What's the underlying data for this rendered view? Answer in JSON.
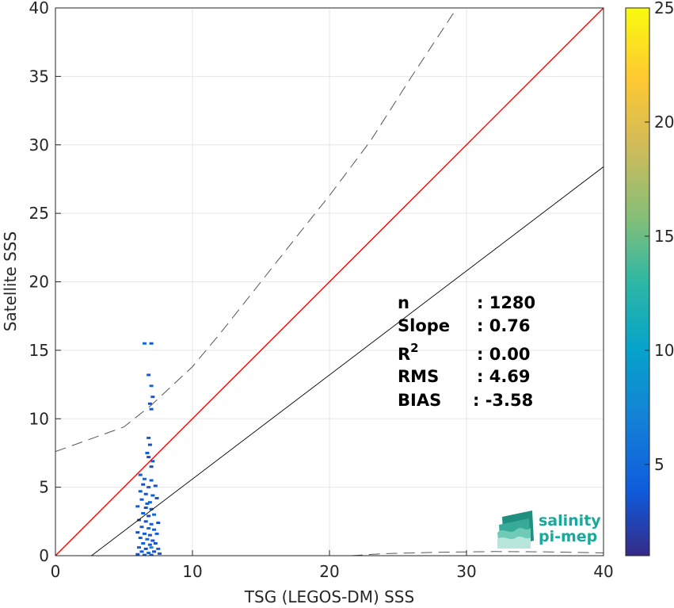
{
  "chart_data": {
    "type": "scatter",
    "xlabel": "TSG (LEGOS-DM) SSS",
    "ylabel": "Satellite SSS",
    "xlim": [
      0,
      40
    ],
    "ylim": [
      0,
      40
    ],
    "xticks": [
      "0",
      "10",
      "20",
      "30",
      "40"
    ],
    "yticks": [
      "0",
      "5",
      "10",
      "15",
      "20",
      "25",
      "30",
      "35",
      "40"
    ],
    "grid": true,
    "colorbar": {
      "range": [
        1,
        25
      ],
      "ticks": [
        "5",
        "10",
        "15",
        "20",
        "25"
      ],
      "colormap": "parula"
    },
    "identity_line": {
      "color": "#ff0000",
      "from": [
        0,
        0
      ],
      "to": [
        40,
        40
      ]
    },
    "fit_line": {
      "slope": 0.76,
      "intercept": -2.0,
      "color": "#000000"
    },
    "envelope_upper": [
      [
        0,
        7.6
      ],
      [
        5,
        9.4
      ],
      [
        7,
        11.0
      ],
      [
        10,
        13.8
      ],
      [
        12,
        16.2
      ],
      [
        15,
        20.0
      ],
      [
        18,
        23.8
      ],
      [
        20,
        26.3
      ],
      [
        23,
        30.3
      ],
      [
        26,
        35.0
      ],
      [
        29.3,
        40
      ]
    ],
    "envelope_lower": [
      [
        21.6,
        0
      ],
      [
        24,
        0.15
      ],
      [
        28,
        0.25
      ],
      [
        32,
        0.3
      ],
      [
        36,
        0.28
      ],
      [
        40,
        0.2
      ]
    ],
    "points": [
      [
        6.5,
        15.5,
        5
      ],
      [
        7.0,
        15.5,
        4
      ],
      [
        6.8,
        13.2,
        4
      ],
      [
        7.0,
        12.4,
        5
      ],
      [
        7.1,
        11.6,
        4
      ],
      [
        6.9,
        11.1,
        3
      ],
      [
        7.0,
        10.7,
        4
      ],
      [
        6.8,
        8.6,
        4
      ],
      [
        6.9,
        8.1,
        3
      ],
      [
        6.7,
        7.5,
        4
      ],
      [
        6.8,
        7.2,
        3
      ],
      [
        7.1,
        6.9,
        4
      ],
      [
        7.0,
        6.5,
        3
      ],
      [
        6.2,
        5.9,
        4
      ],
      [
        6.5,
        5.6,
        5
      ],
      [
        7.0,
        5.5,
        4
      ],
      [
        6.4,
        5.2,
        3
      ],
      [
        6.8,
        5.0,
        4
      ],
      [
        7.3,
        5.1,
        3
      ],
      [
        6.2,
        4.7,
        4
      ],
      [
        6.6,
        4.5,
        3
      ],
      [
        7.1,
        4.4,
        4
      ],
      [
        6.3,
        4.1,
        4
      ],
      [
        6.9,
        3.9,
        5
      ],
      [
        7.4,
        4.2,
        3
      ],
      [
        6.0,
        3.6,
        4
      ],
      [
        6.6,
        3.5,
        3
      ],
      [
        7.0,
        3.4,
        4
      ],
      [
        6.4,
        3.1,
        4
      ],
      [
        6.8,
        2.9,
        3
      ],
      [
        7.2,
        3.0,
        5
      ],
      [
        6.1,
        2.6,
        4
      ],
      [
        6.6,
        2.5,
        3
      ],
      [
        7.0,
        2.3,
        4
      ],
      [
        7.5,
        2.4,
        3
      ],
      [
        6.3,
        2.1,
        4
      ],
      [
        6.8,
        2.0,
        5
      ],
      [
        7.2,
        1.9,
        4
      ],
      [
        6.0,
        1.7,
        3
      ],
      [
        6.5,
        1.6,
        4
      ],
      [
        6.9,
        1.5,
        3
      ],
      [
        7.4,
        1.6,
        4
      ],
      [
        6.2,
        1.3,
        4
      ],
      [
        6.7,
        1.2,
        5
      ],
      [
        7.1,
        1.1,
        3
      ],
      [
        6.4,
        0.9,
        4
      ],
      [
        6.9,
        0.8,
        4
      ],
      [
        7.3,
        0.9,
        3
      ],
      [
        6.1,
        0.6,
        4
      ],
      [
        6.6,
        0.5,
        3
      ],
      [
        7.0,
        0.6,
        8
      ],
      [
        7.5,
        0.5,
        4
      ],
      [
        6.3,
        0.3,
        4
      ],
      [
        6.8,
        0.2,
        5
      ],
      [
        7.2,
        0.3,
        3
      ],
      [
        6.5,
        0.05,
        4
      ],
      [
        7.0,
        0.05,
        4
      ],
      [
        6.0,
        0.1,
        3
      ],
      [
        7.6,
        0.15,
        4
      ],
      [
        6.7,
        3.8,
        4
      ]
    ]
  },
  "stats": [
    {
      "label": "n",
      "value": ": 1280"
    },
    {
      "label": "Slope",
      "value": ": 0.76"
    },
    {
      "label": "R",
      "sup": "2",
      "value": ": 0.00"
    },
    {
      "label": "RMS",
      "value": ": 4.69"
    },
    {
      "label": "BIAS",
      "value": ": -3.58"
    }
  ],
  "logo": {
    "line1": "salinity",
    "line2": "pi-mep"
  }
}
